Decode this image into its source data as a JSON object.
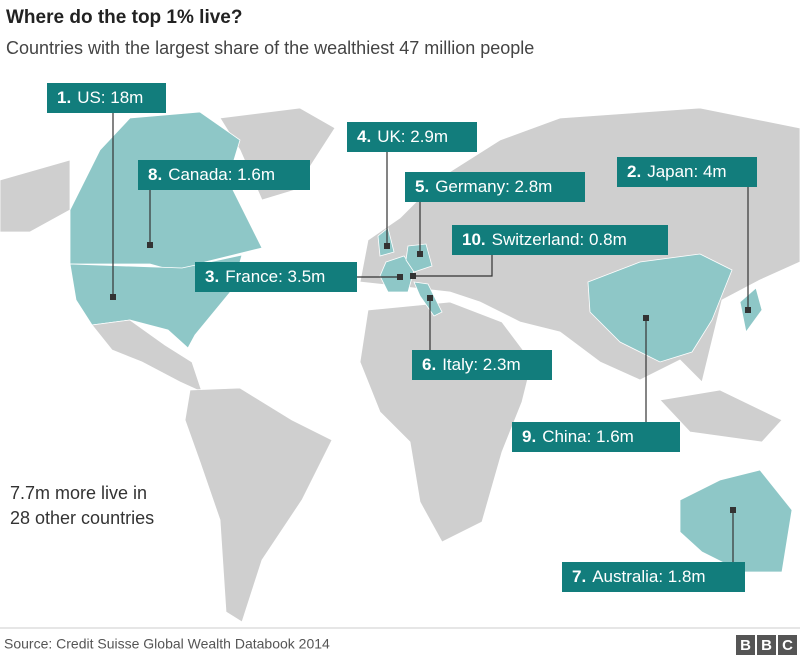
{
  "header": {
    "title": "Where do the top 1% live?",
    "subtitle": "Countries with the largest share of the wealthiest 47 million people"
  },
  "labels": [
    {
      "rank": "1.",
      "text": "US: 18m"
    },
    {
      "rank": "2.",
      "text": "Japan: 4m"
    },
    {
      "rank": "3.",
      "text": "France: 3.5m"
    },
    {
      "rank": "4.",
      "text": "UK: 2.9m"
    },
    {
      "rank": "5.",
      "text": "Germany: 2.8m"
    },
    {
      "rank": "6.",
      "text": "Italy: 2.3m"
    },
    {
      "rank": "7.",
      "text": "Australia: 1.8m"
    },
    {
      "rank": "8.",
      "text": "Canada: 1.6m"
    },
    {
      "rank": "9.",
      "text": "China: 1.6m"
    },
    {
      "rank": "10.",
      "text": "Switzerland: 0.8m"
    }
  ],
  "note": [
    "7.7m more live in",
    "28 other countries"
  ],
  "footer": {
    "source": "Source: Credit Suisse Global Wealth Databook 2014",
    "logo": [
      "B",
      "B",
      "C"
    ]
  }
}
